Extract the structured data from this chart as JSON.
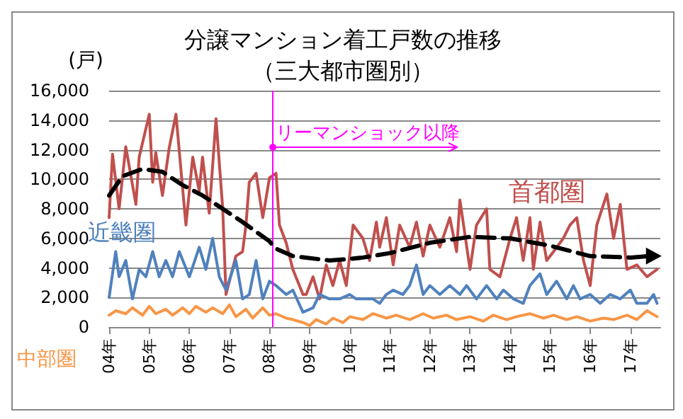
{
  "chart_data": {
    "type": "line",
    "title": "分譲マンション着工戸数の推移",
    "subtitle": "（三大都市圏別）",
    "ylabel": "(戸)",
    "xlim": [
      "2004-01",
      "2017-10"
    ],
    "xticks": [
      {
        "value": "2004-01",
        "label": "04年"
      },
      {
        "value": "2005-01",
        "label": "05年"
      },
      {
        "value": "2006-01",
        "label": "06年"
      },
      {
        "value": "2007-01",
        "label": "07年"
      },
      {
        "value": "2008-01",
        "label": "08年"
      },
      {
        "value": "2009-01",
        "label": "09年"
      },
      {
        "value": "2010-01",
        "label": "10年"
      },
      {
        "value": "2011-01",
        "label": "11年"
      },
      {
        "value": "2012-01",
        "label": "12年"
      },
      {
        "value": "2013-01",
        "label": "13年"
      },
      {
        "value": "2014-01",
        "label": "14年"
      },
      {
        "value": "2015-01",
        "label": "15年"
      },
      {
        "value": "2016-01",
        "label": "16年"
      },
      {
        "value": "2017-01",
        "label": "17年"
      }
    ],
    "ylim": [
      0,
      16000
    ],
    "yticks": [
      {
        "value": 0,
        "label": "0"
      },
      {
        "value": 2000,
        "label": "2,000"
      },
      {
        "value": 4000,
        "label": "4,000"
      },
      {
        "value": 6000,
        "label": "6,000"
      },
      {
        "value": 8000,
        "label": "8,000"
      },
      {
        "value": 10000,
        "label": "10,000"
      },
      {
        "value": 12000,
        "label": "12,000"
      },
      {
        "value": 14000,
        "label": "14,000"
      },
      {
        "value": 16000,
        "label": "16,000"
      }
    ],
    "grid": "y",
    "legend": false,
    "marker": "none",
    "line_style": "solid",
    "ref_lines": [
      {
        "axis": "x",
        "value": "2008-02",
        "label": "リーマンショック以降",
        "color": "#ff00ff"
      }
    ],
    "series": [
      {
        "name": "首都圏",
        "color": "#c0504d",
        "x": [
          "2004-01",
          "2004-02",
          "2004-04",
          "2004-06",
          "2004-09",
          "2004-10",
          "2005-01",
          "2005-02",
          "2005-03",
          "2005-05",
          "2005-07",
          "2005-09",
          "2005-12",
          "2006-02",
          "2006-04",
          "2006-05",
          "2006-07",
          "2006-09",
          "2006-11",
          "2006-12",
          "2007-03",
          "2007-05",
          "2007-06",
          "2007-07",
          "2007-09",
          "2007-11",
          "2008-01",
          "2008-03",
          "2008-04",
          "2008-06",
          "2008-08",
          "2008-11",
          "2008-12",
          "2009-02",
          "2009-04",
          "2009-06",
          "2009-08",
          "2009-10",
          "2009-12",
          "2010-02",
          "2010-05",
          "2010-07",
          "2010-09",
          "2010-10",
          "2010-12",
          "2011-02",
          "2011-04",
          "2011-07",
          "2011-09",
          "2011-11",
          "2012-01",
          "2012-04",
          "2012-07",
          "2012-09",
          "2012-10",
          "2013-01",
          "2013-03",
          "2013-06",
          "2013-07",
          "2013-10",
          "2014-01",
          "2014-03",
          "2014-05",
          "2014-07",
          "2014-08",
          "2014-10",
          "2014-12",
          "2015-02",
          "2015-05",
          "2015-07",
          "2015-09",
          "2015-11",
          "2016-01",
          "2016-03",
          "2016-06",
          "2016-08",
          "2016-10",
          "2016-11",
          "2016-12",
          "2017-03",
          "2017-06",
          "2017-09"
        ],
        "values": [
          7400,
          11700,
          8000,
          12200,
          8300,
          11500,
          14400,
          9800,
          11800,
          8900,
          12100,
          14400,
          6900,
          11500,
          9200,
          11500,
          7700,
          14100,
          8000,
          2200,
          4800,
          5100,
          6900,
          9800,
          10400,
          7400,
          10100,
          10400,
          6900,
          5700,
          3900,
          2200,
          2200,
          3400,
          1900,
          4200,
          2800,
          4500,
          2800,
          6900,
          6000,
          4500,
          7100,
          5400,
          7400,
          4200,
          6900,
          5400,
          7100,
          4800,
          6900,
          5400,
          7400,
          5100,
          8600,
          3900,
          6900,
          8000,
          3900,
          3400,
          6000,
          7400,
          4500,
          7400,
          3900,
          7100,
          4500,
          5100,
          6000,
          6900,
          7400,
          4500,
          2800,
          6900,
          9000,
          6000,
          8300,
          6000,
          3900,
          4200,
          3400,
          3900
        ]
      },
      {
        "name": "近畿圏",
        "color": "#4f81bd",
        "x": [
          "2004-01",
          "2004-03",
          "2004-04",
          "2004-06",
          "2004-08",
          "2004-10",
          "2004-12",
          "2005-02",
          "2005-04",
          "2005-06",
          "2005-08",
          "2005-10",
          "2006-01",
          "2006-04",
          "2006-06",
          "2006-08",
          "2006-10",
          "2006-12",
          "2007-03",
          "2007-05",
          "2007-07",
          "2007-09",
          "2007-11",
          "2008-01",
          "2008-03",
          "2008-06",
          "2008-08",
          "2008-11",
          "2009-02",
          "2009-04",
          "2009-07",
          "2009-10",
          "2010-01",
          "2010-03",
          "2010-08",
          "2010-10",
          "2010-12",
          "2011-02",
          "2011-05",
          "2011-07",
          "2011-09",
          "2011-11",
          "2012-01",
          "2012-04",
          "2012-07",
          "2012-10",
          "2012-12",
          "2013-03",
          "2013-06",
          "2013-09",
          "2013-11",
          "2014-02",
          "2014-05",
          "2014-07",
          "2014-10",
          "2014-12",
          "2015-03",
          "2015-06",
          "2015-08",
          "2015-10",
          "2016-01",
          "2016-04",
          "2016-07",
          "2016-10",
          "2017-01",
          "2017-03",
          "2017-06",
          "2017-08",
          "2017-09"
        ],
        "values": [
          2000,
          5100,
          3400,
          4500,
          1900,
          3900,
          3400,
          5100,
          3400,
          4500,
          3400,
          5100,
          3400,
          5400,
          3900,
          6000,
          3400,
          2500,
          4500,
          1900,
          2200,
          4500,
          1900,
          3100,
          2800,
          2200,
          2500,
          1000,
          1300,
          2200,
          1900,
          1900,
          2200,
          1900,
          1900,
          1600,
          2200,
          2500,
          2200,
          2800,
          4200,
          2200,
          2800,
          2200,
          2800,
          2200,
          2800,
          1900,
          2800,
          1900,
          2500,
          1900,
          1600,
          2800,
          3600,
          2200,
          3100,
          1900,
          2800,
          1900,
          2200,
          1600,
          2200,
          1900,
          2500,
          1600,
          1600,
          2200,
          1600
        ]
      },
      {
        "name": "中部圏",
        "color": "#f79646",
        "x": [
          "2004-01",
          "2004-03",
          "2004-06",
          "2004-08",
          "2004-11",
          "2005-01",
          "2005-03",
          "2005-06",
          "2005-08",
          "2005-11",
          "2006-01",
          "2006-03",
          "2006-06",
          "2006-08",
          "2006-11",
          "2007-01",
          "2007-03",
          "2007-06",
          "2007-08",
          "2007-11",
          "2008-01",
          "2008-03",
          "2008-06",
          "2008-08",
          "2008-11",
          "2009-01",
          "2009-03",
          "2009-06",
          "2009-08",
          "2009-11",
          "2010-01",
          "2010-05",
          "2010-08",
          "2010-12",
          "2011-03",
          "2011-07",
          "2011-11",
          "2012-02",
          "2012-06",
          "2012-09",
          "2013-01",
          "2013-05",
          "2013-08",
          "2013-12",
          "2014-03",
          "2014-07",
          "2014-11",
          "2015-02",
          "2015-06",
          "2015-09",
          "2016-01",
          "2016-05",
          "2016-08",
          "2016-12",
          "2017-03",
          "2017-06",
          "2017-09"
        ],
        "values": [
          800,
          1100,
          900,
          1300,
          800,
          1400,
          900,
          1200,
          800,
          1300,
          900,
          1400,
          1000,
          1300,
          900,
          1500,
          700,
          1200,
          600,
          1300,
          800,
          900,
          600,
          500,
          300,
          100,
          500,
          200,
          600,
          300,
          700,
          500,
          900,
          600,
          800,
          500,
          900,
          600,
          800,
          500,
          700,
          400,
          800,
          500,
          700,
          900,
          600,
          800,
          500,
          700,
          400,
          600,
          500,
          800,
          500,
          1100,
          700
        ]
      },
      {
        "color": "#000000",
        "line_style": "dashed",
        "x": [
          "2004-01",
          "2004-05",
          "2004-11",
          "2005-05",
          "2005-11",
          "2006-05",
          "2006-11",
          "2007-05",
          "2008-01",
          "2008-03",
          "2008-08",
          "2009-07",
          "2010-01",
          "2010-05",
          "2011-01",
          "2012-01",
          "2013-01",
          "2014-01",
          "2015-01",
          "2016-01",
          "2017-01",
          "2017-07"
        ],
        "values": [
          8900,
          10200,
          10700,
          10500,
          9600,
          8900,
          8000,
          7100,
          5800,
          5300,
          4800,
          4500,
          4600,
          4700,
          5000,
          5700,
          6100,
          6000,
          5500,
          4800,
          4700,
          4800
        ]
      }
    ]
  }
}
